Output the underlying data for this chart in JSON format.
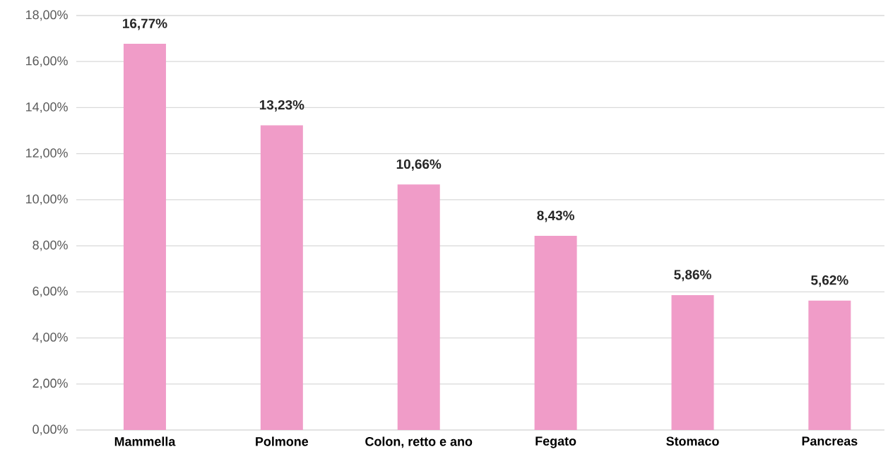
{
  "chart_data": {
    "type": "bar",
    "categories": [
      "Mammella",
      "Polmone",
      "Colon, retto e ano",
      "Fegato",
      "Stomaco",
      "Pancreas"
    ],
    "values": [
      16.77,
      13.23,
      10.66,
      8.43,
      5.86,
      5.62
    ],
    "value_labels": [
      "16,77%",
      "13,23%",
      "10,66%",
      "8,43%",
      "5,86%",
      "5,62%"
    ],
    "color": "#f09cc8",
    "ylim": [
      0,
      18
    ],
    "yticks": [
      {
        "value": 0,
        "label": "0,00%"
      },
      {
        "value": 2,
        "label": "2,00%"
      },
      {
        "value": 4,
        "label": "4,00%"
      },
      {
        "value": 6,
        "label": "6,00%"
      },
      {
        "value": 8,
        "label": "8,00%"
      },
      {
        "value": 10,
        "label": "10,00%"
      },
      {
        "value": 12,
        "label": "12,00%"
      },
      {
        "value": 14,
        "label": "14,00%"
      },
      {
        "value": 16,
        "label": "16,00%"
      },
      {
        "value": 18,
        "label": "18,00%"
      }
    ],
    "grid": "y"
  }
}
